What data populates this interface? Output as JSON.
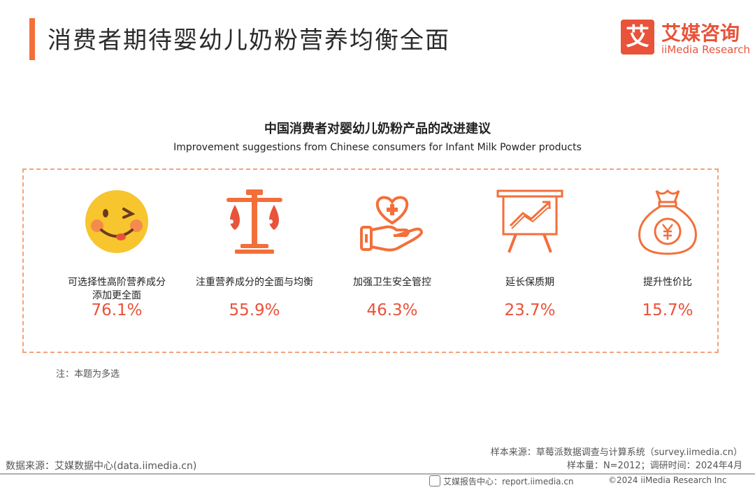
{
  "header": {
    "title": "消费者期待婴幼儿奶粉营养均衡全面",
    "brand_mark": "艾",
    "brand_cn": "艾媒咨询",
    "brand_en": "iiMedia Research"
  },
  "chart_data": {
    "type": "table",
    "title": "中国消费者对婴幼儿奶粉产品的改进建议",
    "subtitle": "Improvement suggestions from Chinese consumers for Infant Milk Powder products",
    "categories": [
      "可选择性高阶营养成分添加更全面",
      "注重营养成分的全面与均衡",
      "加强卫生安全管控",
      "延长保质期",
      "提升性价比"
    ],
    "values": [
      76.1,
      55.9,
      46.3,
      23.7,
      15.7
    ],
    "value_labels": [
      "76.1%",
      "55.9%",
      "46.3%",
      "23.7%",
      "15.7%"
    ],
    "icons": [
      "smiley-face-icon",
      "balance-scale-icon",
      "hand-heart-plus-icon",
      "chart-board-icon",
      "money-bag-icon"
    ]
  },
  "items": [
    {
      "label": "可选择性高阶营养成分\n添加更全面",
      "value": "76.1%"
    },
    {
      "label": "注重营养成分的全面与均衡",
      "value": "55.9%"
    },
    {
      "label": "加强卫生安全管控",
      "value": "46.3%"
    },
    {
      "label": "延长保质期",
      "value": "23.7%"
    },
    {
      "label": "提升性价比",
      "value": "15.7%"
    }
  ],
  "note": "注：本题为多选",
  "source_left": "数据来源：艾媒数据中心(data.iimedia.cn)",
  "source_right_1": "样本来源：草莓派数据调查与计算系统（survey.iimedia.cn）",
  "source_right_2": "样本量：N=2012；调研时间：2024年4月",
  "footer_center": "艾媒报告中心：report.iimedia.cn",
  "footer_copy": "©2024  iiMedia Research  Inc",
  "colors": {
    "accent": "#e8533a",
    "icon": "#f36f3a",
    "panel_border": "#f4a37a"
  }
}
